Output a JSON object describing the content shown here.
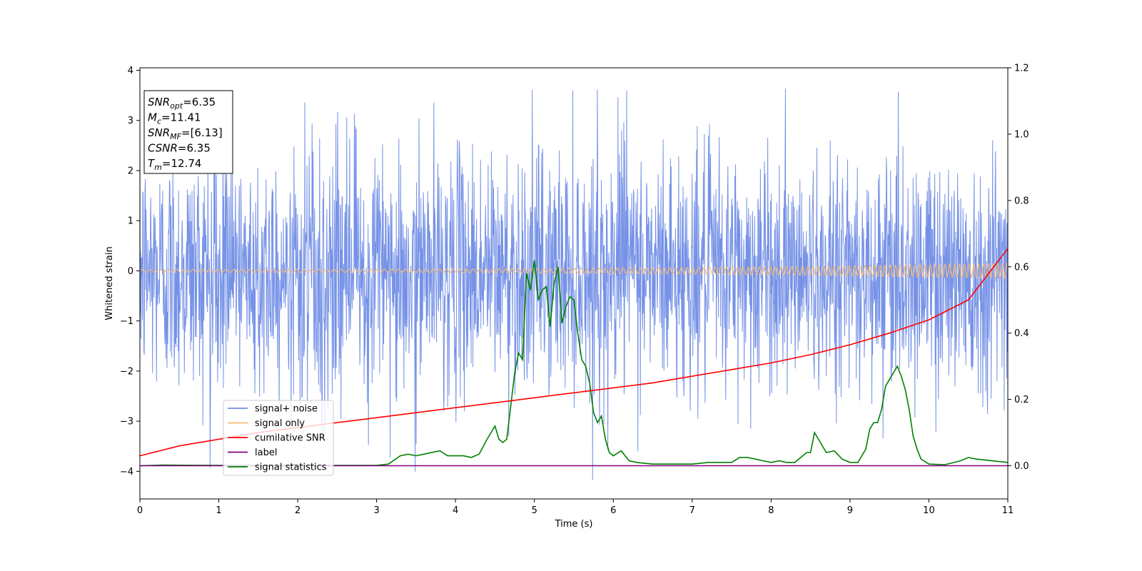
{
  "chart_data": {
    "type": "line",
    "title": "",
    "xlabel": "Time (s)",
    "ylabel": "Whitened strain",
    "xlim": [
      0,
      11
    ],
    "ylim_left": [
      -4.55,
      4.05
    ],
    "ylim_right": [
      -0.1,
      1.2
    ],
    "x_ticks": [
      0,
      1,
      2,
      3,
      4,
      5,
      6,
      7,
      8,
      9,
      10,
      11
    ],
    "y_ticks_left": [
      -4,
      -3,
      -2,
      -1,
      0,
      1,
      2,
      3,
      4
    ],
    "y_ticks_right": [
      0.0,
      0.2,
      0.4,
      0.6,
      0.8,
      1.0,
      1.2
    ],
    "grid": false,
    "legend_position": "lower-left",
    "series": [
      {
        "name": "signal+ noise",
        "axis": "left",
        "color": "#6f8ce6",
        "kind": "noise",
        "noise_sigma": 1.0,
        "peak_range": [
          -4.2,
          3.65
        ],
        "x_range": [
          0,
          11
        ]
      },
      {
        "name": "signal only",
        "axis": "left",
        "color": "#f5b97a",
        "kind": "chirp",
        "amplitude_start": 0.03,
        "amplitude_end": 0.15,
        "x_range": [
          0,
          11
        ]
      },
      {
        "name": "cumilative SNR",
        "axis": "right",
        "color": "#ff0000",
        "x": [
          0,
          0.5,
          1,
          1.5,
          2,
          2.5,
          3,
          3.5,
          4,
          4.5,
          5,
          5.5,
          6,
          6.5,
          7,
          7.5,
          8,
          8.5,
          9,
          9.5,
          10,
          10.5,
          11
        ],
        "values": [
          0.03,
          0.06,
          0.08,
          0.1,
          0.115,
          0.13,
          0.145,
          0.16,
          0.175,
          0.19,
          0.205,
          0.22,
          0.235,
          0.25,
          0.27,
          0.29,
          0.31,
          0.335,
          0.365,
          0.4,
          0.44,
          0.5,
          0.655
        ]
      },
      {
        "name": "label",
        "axis": "right",
        "color": "#800080",
        "x": [
          0,
          11
        ],
        "values": [
          0.0,
          0.0
        ]
      },
      {
        "name": "signal statistics",
        "axis": "right",
        "color": "#008000",
        "x": [
          0,
          0.3,
          1,
          2,
          3,
          3.15,
          3.3,
          3.4,
          3.5,
          3.6,
          3.8,
          3.9,
          4.0,
          4.1,
          4.2,
          4.3,
          4.4,
          4.5,
          4.55,
          4.6,
          4.65,
          4.7,
          4.75,
          4.8,
          4.85,
          4.9,
          4.95,
          5.0,
          5.05,
          5.1,
          5.15,
          5.2,
          5.25,
          5.3,
          5.35,
          5.4,
          5.45,
          5.5,
          5.55,
          5.6,
          5.65,
          5.7,
          5.75,
          5.8,
          5.85,
          5.9,
          5.95,
          6.0,
          6.1,
          6.2,
          6.3,
          6.5,
          6.7,
          7.0,
          7.2,
          7.5,
          7.6,
          7.7,
          7.8,
          7.9,
          8.0,
          8.1,
          8.2,
          8.3,
          8.4,
          8.45,
          8.5,
          8.55,
          8.6,
          8.7,
          8.8,
          8.9,
          9.0,
          9.1,
          9.2,
          9.25,
          9.3,
          9.35,
          9.4,
          9.45,
          9.5,
          9.55,
          9.6,
          9.65,
          9.7,
          9.75,
          9.8,
          9.85,
          9.9,
          10.0,
          10.2,
          10.4,
          10.5,
          10.6,
          10.8,
          11.0
        ],
        "values": [
          0.0,
          0.002,
          0.001,
          0.001,
          0.001,
          0.005,
          0.03,
          0.035,
          0.03,
          0.035,
          0.045,
          0.03,
          0.03,
          0.03,
          0.025,
          0.035,
          0.08,
          0.12,
          0.08,
          0.07,
          0.08,
          0.18,
          0.28,
          0.34,
          0.32,
          0.58,
          0.53,
          0.62,
          0.5,
          0.53,
          0.54,
          0.42,
          0.55,
          0.6,
          0.43,
          0.48,
          0.51,
          0.5,
          0.4,
          0.32,
          0.3,
          0.25,
          0.16,
          0.13,
          0.15,
          0.08,
          0.04,
          0.03,
          0.045,
          0.015,
          0.01,
          0.005,
          0.005,
          0.005,
          0.01,
          0.01,
          0.025,
          0.025,
          0.02,
          0.015,
          0.01,
          0.015,
          0.01,
          0.01,
          0.03,
          0.04,
          0.04,
          0.1,
          0.08,
          0.04,
          0.045,
          0.02,
          0.01,
          0.01,
          0.05,
          0.11,
          0.13,
          0.13,
          0.17,
          0.24,
          0.26,
          0.28,
          0.3,
          0.27,
          0.23,
          0.17,
          0.09,
          0.05,
          0.02,
          0.005,
          0.003,
          0.015,
          0.025,
          0.02,
          0.015,
          0.01
        ]
      }
    ]
  },
  "info_box": {
    "lines": [
      {
        "sym": "SNR",
        "sub": "opt",
        "value": "=6.35"
      },
      {
        "sym": "M",
        "sub": "c",
        "value": "=11.41"
      },
      {
        "sym": "SNR",
        "sub": "MF",
        "value": "=[6.13]"
      },
      {
        "sym": "CSNR",
        "sub": "",
        "value": "=6.35"
      },
      {
        "sym": "T",
        "sub": "m",
        "value": "=12.74"
      }
    ]
  },
  "legend": {
    "items": [
      {
        "label": "signal+ noise",
        "color": "#6f8ce6"
      },
      {
        "label": "signal only",
        "color": "#f5b97a"
      },
      {
        "label": "cumilative SNR",
        "color": "#ff0000"
      },
      {
        "label": "label",
        "color": "#800080"
      },
      {
        "label": "signal statistics",
        "color": "#008000"
      }
    ]
  }
}
